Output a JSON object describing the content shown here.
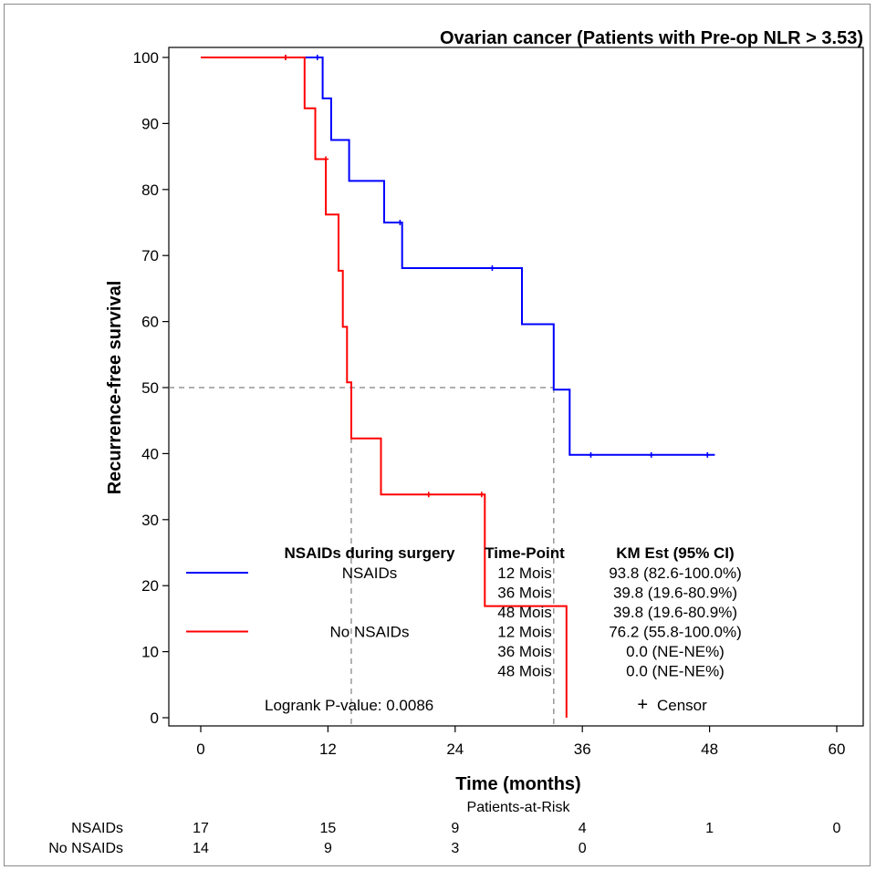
{
  "chart_data": {
    "type": "line",
    "subtype": "kaplan-meier",
    "title": "Ovarian cancer (Patients with Pre-op NLR > 3.53)",
    "xlabel": "Time (months)",
    "ylabel": "Recurrence-free survival",
    "xlim": [
      0,
      60
    ],
    "ylim": [
      0,
      100
    ],
    "xticks": [
      "0",
      "12",
      "24",
      "36",
      "48",
      "60"
    ],
    "yticks": [
      "0",
      "10",
      "20",
      "30",
      "40",
      "50",
      "60",
      "70",
      "80",
      "90",
      "100"
    ],
    "grid": false,
    "median_reference_y": 50,
    "series": [
      {
        "name": "NSAIDs",
        "color": "#0000ff",
        "steps": [
          [
            0,
            100
          ],
          [
            11.5,
            100
          ],
          [
            11.5,
            93.8
          ],
          [
            12.3,
            93.8
          ],
          [
            12.3,
            87.5
          ],
          [
            14,
            87.5
          ],
          [
            14,
            81.3
          ],
          [
            17.3,
            81.3
          ],
          [
            17.3,
            75
          ],
          [
            19,
            75
          ],
          [
            19,
            68.1
          ],
          [
            30.3,
            68.1
          ],
          [
            30.3,
            59.6
          ],
          [
            33.3,
            59.6
          ],
          [
            33.3,
            49.7
          ],
          [
            34.8,
            49.7
          ],
          [
            34.8,
            39.8
          ],
          [
            48.5,
            39.8
          ]
        ],
        "censor": [
          [
            8,
            100
          ],
          [
            11,
            100
          ],
          [
            18.8,
            75
          ],
          [
            27.5,
            68.1
          ],
          [
            36.8,
            39.8
          ],
          [
            42.5,
            39.8
          ],
          [
            47.8,
            39.8
          ]
        ]
      },
      {
        "name": "No NSAIDs",
        "color": "#ff0000",
        "steps": [
          [
            0,
            100
          ],
          [
            9.8,
            100
          ],
          [
            9.8,
            92.3
          ],
          [
            10.8,
            92.3
          ],
          [
            10.8,
            84.6
          ],
          [
            11.8,
            84.6
          ],
          [
            11.8,
            76.2
          ],
          [
            13,
            76.2
          ],
          [
            13,
            67.7
          ],
          [
            13.4,
            67.7
          ],
          [
            13.4,
            59.2
          ],
          [
            13.8,
            59.2
          ],
          [
            13.8,
            50.8
          ],
          [
            14.2,
            50.8
          ],
          [
            14.2,
            42.3
          ],
          [
            17,
            42.3
          ],
          [
            17,
            33.8
          ],
          [
            26.8,
            33.8
          ],
          [
            26.8,
            16.9
          ],
          [
            34.5,
            16.9
          ],
          [
            34.5,
            0
          ]
        ],
        "censor": [
          [
            8,
            100
          ],
          [
            11.8,
            84.6
          ],
          [
            21.5,
            33.8
          ],
          [
            26.5,
            33.8
          ]
        ]
      }
    ],
    "legend": {
      "placement": "inside-bottom",
      "header_group": "NSAIDs during surgery",
      "header_time": "Time-Point",
      "header_km": "KM Est (95% CI)",
      "groups": [
        {
          "name": "NSAIDs",
          "rows": [
            {
              "time": "12 Mois",
              "km": "93.8 (82.6-100.0%)"
            },
            {
              "time": "36 Mois",
              "km": "39.8 (19.6-80.9%)"
            },
            {
              "time": "48 Mois",
              "km": "39.8 (19.6-80.9%)"
            }
          ]
        },
        {
          "name": "No NSAIDs",
          "rows": [
            {
              "time": "12 Mois",
              "km": "76.2 (55.8-100.0%)"
            },
            {
              "time": "36 Mois",
              "km": "0.0 (NE-NE%)"
            },
            {
              "time": "48 Mois",
              "km": "0.0 (NE-NE%)"
            }
          ]
        }
      ],
      "logrank": "Logrank P-value: 0.0086",
      "censor_label": "Censor",
      "censor_symbol": "+"
    },
    "risk_table": {
      "title": "Patients-at-Risk",
      "timepoints": [
        0,
        12,
        24,
        36,
        48,
        60
      ],
      "rows": [
        {
          "name": "NSAIDs",
          "values": [
            "17",
            "15",
            "9",
            "4",
            "1",
            "0"
          ]
        },
        {
          "name": "No NSAIDs",
          "values": [
            "14",
            "9",
            "3",
            "0"
          ]
        }
      ]
    }
  }
}
